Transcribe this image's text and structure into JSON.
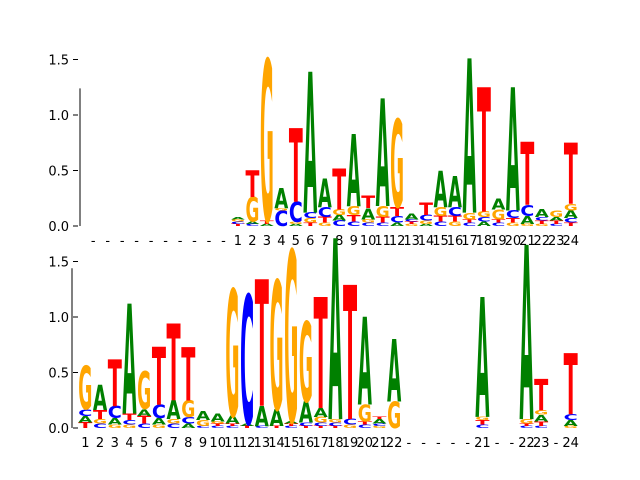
{
  "colors": {
    "A": "#008000",
    "C": "#0000ff",
    "G": "#ffa500",
    "T": "#ff0000"
  },
  "chart_data": [
    {
      "type": "sequence-logo",
      "ylim": [
        0,
        1.6
      ],
      "yticks": [
        "0.0",
        "0.5",
        "1.0",
        "1.5"
      ],
      "columns": [
        {
          "label": "-",
          "letters": []
        },
        {
          "label": "-",
          "letters": []
        },
        {
          "label": "-",
          "letters": []
        },
        {
          "label": "-",
          "letters": []
        },
        {
          "label": "-",
          "letters": []
        },
        {
          "label": "-",
          "letters": []
        },
        {
          "label": "-",
          "letters": []
        },
        {
          "label": "-",
          "letters": []
        },
        {
          "label": "-",
          "letters": []
        },
        {
          "label": "-",
          "letters": []
        },
        {
          "label": "1",
          "letters": [
            [
              "T",
              0.02
            ],
            [
              "C",
              0.02
            ],
            [
              "G",
              0.02
            ],
            [
              "A",
              0.02
            ]
          ]
        },
        {
          "label": "2",
          "letters": [
            [
              "C",
              0.02
            ],
            [
              "A",
              0.02
            ],
            [
              "G",
              0.22
            ],
            [
              "T",
              0.24
            ]
          ]
        },
        {
          "label": "3",
          "letters": [
            [
              "A",
              0.02
            ],
            [
              "T",
              0.03
            ],
            [
              "G",
              1.45
            ]
          ]
        },
        {
          "label": "4",
          "letters": [
            [
              "C",
              0.14
            ],
            [
              "G",
              0.02
            ],
            [
              "A",
              0.18
            ]
          ]
        },
        {
          "label": "5",
          "letters": [
            [
              "A",
              0.02
            ],
            [
              "G",
              0.02
            ],
            [
              "C",
              0.18
            ],
            [
              "T",
              0.66
            ]
          ]
        },
        {
          "label": "6",
          "letters": [
            [
              "T",
              0.03
            ],
            [
              "G",
              0.04
            ],
            [
              "C",
              0.05
            ],
            [
              "A",
              1.27
            ]
          ]
        },
        {
          "label": "7",
          "letters": [
            [
              "G",
              0.03
            ],
            [
              "T",
              0.05
            ],
            [
              "C",
              0.09
            ],
            [
              "A",
              0.26
            ]
          ]
        },
        {
          "label": "8",
          "letters": [
            [
              "C",
              0.05
            ],
            [
              "A",
              0.05
            ],
            [
              "G",
              0.05
            ],
            [
              "T",
              0.37
            ]
          ]
        },
        {
          "label": "9",
          "letters": [
            [
              "C",
              0.04
            ],
            [
              "T",
              0.06
            ],
            [
              "G",
              0.08
            ],
            [
              "A",
              0.65
            ]
          ]
        },
        {
          "label": "10",
          "letters": [
            [
              "C",
              0.03
            ],
            [
              "G",
              0.03
            ],
            [
              "A",
              0.1
            ],
            [
              "T",
              0.11
            ]
          ]
        },
        {
          "label": "11",
          "letters": [
            [
              "C",
              0.03
            ],
            [
              "T",
              0.05
            ],
            [
              "G",
              0.1
            ],
            [
              "A",
              0.97
            ]
          ]
        },
        {
          "label": "12",
          "letters": [
            [
              "A",
              0.03
            ],
            [
              "C",
              0.06
            ],
            [
              "T",
              0.08
            ],
            [
              "G",
              0.79
            ]
          ]
        },
        {
          "label": "13",
          "letters": [
            [
              "G",
              0.02
            ],
            [
              "T",
              0.02
            ],
            [
              "C",
              0.02
            ],
            [
              "A",
              0.05
            ]
          ]
        },
        {
          "label": "14",
          "letters": [
            [
              "A",
              0.02
            ],
            [
              "G",
              0.03
            ],
            [
              "C",
              0.05
            ],
            [
              "T",
              0.11
            ]
          ]
        },
        {
          "label": "15",
          "letters": [
            [
              "C",
              0.04
            ],
            [
              "T",
              0.05
            ],
            [
              "G",
              0.08
            ],
            [
              "A",
              0.33
            ]
          ]
        },
        {
          "label": "16",
          "letters": [
            [
              "G",
              0.04
            ],
            [
              "T",
              0.05
            ],
            [
              "C",
              0.08
            ],
            [
              "A",
              0.28
            ]
          ]
        },
        {
          "label": "17",
          "letters": [
            [
              "C",
              0.03
            ],
            [
              "T",
              0.03
            ],
            [
              "G",
              0.06
            ],
            [
              "A",
              1.39
            ]
          ]
        },
        {
          "label": "18",
          "letters": [
            [
              "A",
              0.04
            ],
            [
              "C",
              0.04
            ],
            [
              "G",
              0.05
            ],
            [
              "T",
              1.12
            ]
          ]
        },
        {
          "label": "19",
          "letters": [
            [
              "C",
              0.03
            ],
            [
              "T",
              0.03
            ],
            [
              "G",
              0.09
            ],
            [
              "A",
              0.1
            ]
          ]
        },
        {
          "label": "20",
          "letters": [
            [
              "G",
              0.03
            ],
            [
              "T",
              0.04
            ],
            [
              "C",
              0.07
            ],
            [
              "A",
              1.11
            ]
          ]
        },
        {
          "label": "21",
          "letters": [
            [
              "G",
              0.02
            ],
            [
              "A",
              0.07
            ],
            [
              "C",
              0.1
            ],
            [
              "T",
              0.57
            ]
          ]
        },
        {
          "label": "22",
          "letters": [
            [
              "G",
              0.02
            ],
            [
              "T",
              0.03
            ],
            [
              "C",
              0.03
            ],
            [
              "A",
              0.07
            ]
          ]
        },
        {
          "label": "23",
          "letters": [
            [
              "C",
              0.02
            ],
            [
              "T",
              0.03
            ],
            [
              "A",
              0.03
            ],
            [
              "G",
              0.06
            ]
          ]
        },
        {
          "label": "24",
          "letters": [
            [
              "T",
              0.03
            ],
            [
              "C",
              0.04
            ],
            [
              "A",
              0.07
            ],
            [
              "G",
              0.06
            ],
            [
              "T",
              0.55
            ]
          ]
        }
      ]
    },
    {
      "type": "sequence-logo",
      "ylim": [
        0,
        1.8
      ],
      "yticks": [
        "0.0",
        "0.5",
        "1.0",
        "1.5"
      ],
      "columns": [
        {
          "label": "1",
          "letters": [
            [
              "T",
              0.05
            ],
            [
              "A",
              0.06
            ],
            [
              "C",
              0.06
            ],
            [
              "G",
              0.39
            ]
          ]
        },
        {
          "label": "2",
          "letters": [
            [
              "C",
              0.04
            ],
            [
              "G",
              0.04
            ],
            [
              "T",
              0.08
            ],
            [
              "A",
              0.23
            ]
          ]
        },
        {
          "label": "3",
          "letters": [
            [
              "G",
              0.03
            ],
            [
              "A",
              0.06
            ],
            [
              "C",
              0.11
            ],
            [
              "T",
              0.42
            ]
          ]
        },
        {
          "label": "4",
          "letters": [
            [
              "G",
              0.03
            ],
            [
              "C",
              0.04
            ],
            [
              "T",
              0.06
            ],
            [
              "A",
              0.99
            ]
          ]
        },
        {
          "label": "5",
          "letters": [
            [
              "C",
              0.04
            ],
            [
              "T",
              0.07
            ],
            [
              "A",
              0.06
            ],
            [
              "G",
              0.34
            ]
          ]
        },
        {
          "label": "6",
          "letters": [
            [
              "G",
              0.03
            ],
            [
              "A",
              0.06
            ],
            [
              "C",
              0.12
            ],
            [
              "T",
              0.52
            ]
          ]
        },
        {
          "label": "7",
          "letters": [
            [
              "C",
              0.04
            ],
            [
              "G",
              0.04
            ],
            [
              "A",
              0.17
            ],
            [
              "T",
              0.69
            ]
          ]
        },
        {
          "label": "8",
          "letters": [
            [
              "A",
              0.04
            ],
            [
              "C",
              0.06
            ],
            [
              "G",
              0.15
            ],
            [
              "T",
              0.48
            ]
          ]
        },
        {
          "label": "9",
          "letters": [
            [
              "C",
              0.02
            ],
            [
              "G",
              0.05
            ],
            [
              "A",
              0.08
            ]
          ]
        },
        {
          "label": "10",
          "letters": [
            [
              "C",
              0.02
            ],
            [
              "T",
              0.02
            ],
            [
              "G",
              0.02
            ],
            [
              "A",
              0.07
            ]
          ]
        },
        {
          "label": "11",
          "letters": [
            [
              "C",
              0.02
            ],
            [
              "T",
              0.02
            ],
            [
              "A",
              0.07
            ],
            [
              "G",
              1.14
            ]
          ]
        },
        {
          "label": "12",
          "letters": [
            [
              "T",
              0.02
            ],
            [
              "A",
              0.02
            ],
            [
              "C",
              1.16
            ]
          ]
        },
        {
          "label": "13",
          "letters": [
            [
              "C",
              0.02
            ],
            [
              "A",
              0.18
            ],
            [
              "T",
              1.14
            ]
          ]
        },
        {
          "label": "14",
          "letters": [
            [
              "T",
              0.02
            ],
            [
              "A",
              0.15
            ],
            [
              "G",
              1.16
            ]
          ]
        },
        {
          "label": "15",
          "letters": [
            [
              "C",
              0.02
            ],
            [
              "T",
              0.02
            ],
            [
              "A",
              0.02
            ],
            [
              "G",
              1.54
            ]
          ]
        },
        {
          "label": "16",
          "letters": [
            [
              "T",
              0.02
            ],
            [
              "C",
              0.03
            ],
            [
              "A",
              0.19
            ],
            [
              "G",
              0.72
            ]
          ]
        },
        {
          "label": "17",
          "letters": [
            [
              "T",
              0.02
            ],
            [
              "C",
              0.03
            ],
            [
              "G",
              0.05
            ],
            [
              "A",
              0.08
            ],
            [
              "T",
              1.0
            ]
          ]
        },
        {
          "label": "18",
          "letters": [
            [
              "T",
              0.02
            ],
            [
              "C",
              0.03
            ],
            [
              "G",
              0.03
            ],
            [
              "A",
              1.63
            ]
          ]
        },
        {
          "label": "19",
          "letters": [
            [
              "G",
              0.03
            ],
            [
              "C",
              0.05
            ],
            [
              "T",
              1.21
            ]
          ]
        },
        {
          "label": "20",
          "letters": [
            [
              "C",
              0.03
            ],
            [
              "T",
              0.03
            ],
            [
              "G",
              0.15
            ],
            [
              "A",
              0.79
            ]
          ]
        },
        {
          "label": "21",
          "letters": [
            [
              "G",
              0.02
            ],
            [
              "C",
              0.02
            ],
            [
              "A",
              0.04
            ],
            [
              "T",
              0.02
            ]
          ]
        },
        {
          "label": "22",
          "letters": [
            [
              "G",
              0.24
            ],
            [
              "A",
              0.56
            ]
          ]
        },
        {
          "label": "-",
          "letters": []
        },
        {
          "label": "-",
          "letters": []
        },
        {
          "label": "-",
          "letters": []
        },
        {
          "label": "-",
          "letters": []
        },
        {
          "label": "-",
          "letters": []
        },
        {
          "label": "21",
          "letters": [
            [
              "C",
              0.03
            ],
            [
              "T",
              0.04
            ],
            [
              "G",
              0.03
            ],
            [
              "A",
              1.08
            ]
          ]
        },
        {
          "label": "-",
          "letters": []
        },
        {
          "label": "-",
          "letters": []
        },
        {
          "label": "22",
          "letters": [
            [
              "C",
              0.02
            ],
            [
              "T",
              0.02
            ],
            [
              "G",
              0.04
            ],
            [
              "A",
              1.57
            ]
          ]
        },
        {
          "label": "23",
          "letters": [
            [
              "C",
              0.02
            ],
            [
              "T",
              0.04
            ],
            [
              "A",
              0.06
            ],
            [
              "G",
              0.04
            ],
            [
              "T",
              0.28
            ]
          ]
        },
        {
          "label": "-",
          "letters": []
        },
        {
          "label": "24",
          "letters": [
            [
              "G",
              0.02
            ],
            [
              "A",
              0.05
            ],
            [
              "C",
              0.05
            ],
            [
              "T",
              0.55
            ]
          ]
        }
      ]
    }
  ]
}
